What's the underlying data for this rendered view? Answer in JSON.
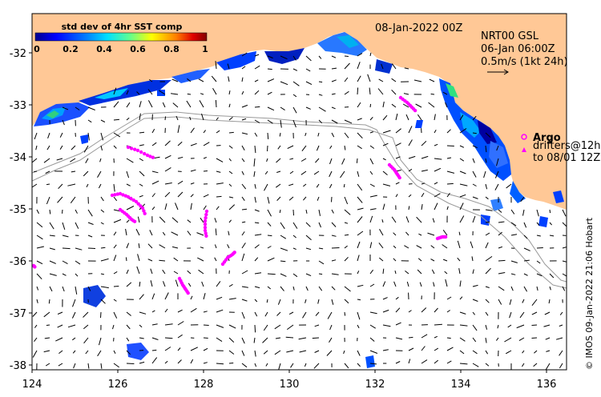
{
  "map": {
    "date_label": "08-Jan-2022 00Z",
    "current_source": "NRT00 GSL",
    "current_time": "06-Jan 06:00Z",
    "vector_scale": "0.5m/s (1kt 24h)",
    "argo_label": "Argo",
    "drifters_label_1": "drifters@12h",
    "drifters_label_2": "to 08/01 12Z",
    "credit": "© IMOS 09-Jan-2022 21:06 Hobart",
    "x_ticks": [
      "124",
      "126",
      "128",
      "130",
      "132",
      "134",
      "136"
    ],
    "y_ticks": [
      "-32",
      "-33",
      "-34",
      "-35",
      "-36",
      "-37",
      "-38"
    ],
    "land_color": "#ffc896",
    "drifter_color": "#ff00ff",
    "depth_contour_color": "#999999"
  },
  "colorbar": {
    "title": "std dev of 4hr SST comp",
    "ticks": [
      "0",
      "0.2",
      "0.4",
      "0.6",
      "0.8",
      "1"
    ],
    "colors": [
      "#00008f",
      "#0000ff",
      "#0060ff",
      "#00c0ff",
      "#30ffcf",
      "#a0ff60",
      "#ffff00",
      "#ffa000",
      "#ff4000",
      "#c00000",
      "#800000"
    ]
  }
}
